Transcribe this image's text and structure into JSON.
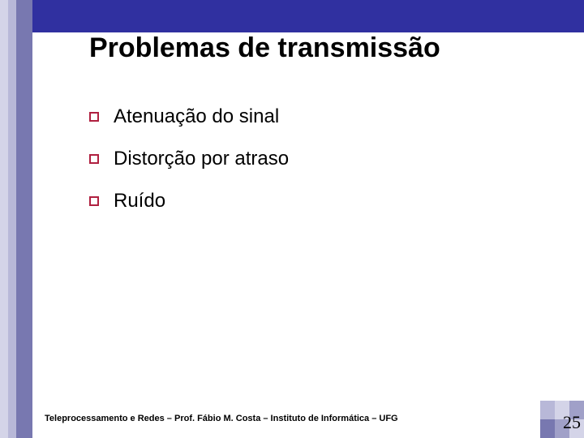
{
  "title": "Problemas de transmissão",
  "bullets": {
    "b0": "Atenuação do sinal",
    "b1": "Distorção por atraso",
    "b2": "Ruído"
  },
  "footer": "Teleprocessamento e Redes – Prof. Fábio M. Costa – Instituto de Informática – UFG",
  "page_number": "25",
  "colors": {
    "top_band": "#3030a0",
    "strip_outer": "#d4d4e8",
    "strip_mid": "#b8b8d8",
    "strip_inner": "#7878b0",
    "bullet_border": "#b02040"
  }
}
